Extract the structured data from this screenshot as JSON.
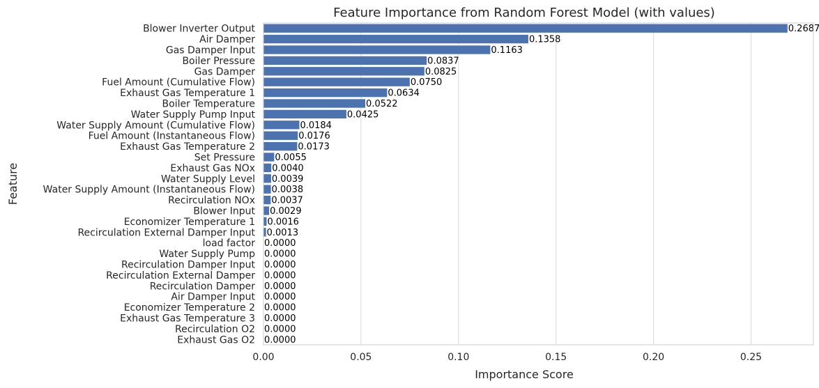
{
  "chart_data": {
    "type": "bar",
    "orientation": "horizontal",
    "title": "Feature Importance from Random Forest Model (with values)",
    "xlabel": "Importance Score",
    "ylabel": "Feature",
    "xlim": [
      0,
      0.282
    ],
    "xticks": [
      0.0,
      0.05,
      0.1,
      0.15,
      0.2,
      0.25
    ],
    "xtick_labels": [
      "0.00",
      "0.05",
      "0.10",
      "0.15",
      "0.20",
      "0.25"
    ],
    "grid": "vertical",
    "bar_color": "#4c72b0",
    "categories": [
      "Blower Inverter Output",
      "Air Damper",
      "Gas Damper Input",
      "Boiler Pressure",
      "Gas Damper",
      "Fuel Amount (Cumulative Flow)",
      "Exhaust Gas Temperature 1",
      "Boiler Temperature",
      "Water Supply Pump Input",
      "Water Supply Amount (Cumulative Flow)",
      "Fuel Amount (Instantaneous Flow)",
      "Exhaust Gas Temperature 2",
      "Set Pressure",
      "Exhaust Gas NOx",
      "Water Supply Level",
      "Water Supply Amount (Instantaneous Flow)",
      "Recirculation NOx",
      "Blower Input",
      "Economizer Temperature 1",
      "Recirculation External Damper Input",
      "load factor",
      "Water Supply Pump",
      "Recirculation Damper Input",
      "Recirculation External Damper",
      "Recirculation Damper",
      "Air Damper Input",
      "Economizer Temperature 2",
      "Exhaust Gas Temperature 3",
      "Recirculation O2",
      "Exhaust Gas O2"
    ],
    "values": [
      0.2687,
      0.1358,
      0.1163,
      0.0837,
      0.0825,
      0.075,
      0.0634,
      0.0522,
      0.0425,
      0.0184,
      0.0176,
      0.0173,
      0.0055,
      0.004,
      0.0039,
      0.0038,
      0.0037,
      0.0029,
      0.0016,
      0.0013,
      0.0,
      0.0,
      0.0,
      0.0,
      0.0,
      0.0,
      0.0,
      0.0,
      0.0,
      0.0
    ],
    "value_labels": [
      "0.2687",
      "0.1358",
      "0.1163",
      "0.0837",
      "0.0825",
      "0.0750",
      "0.0634",
      "0.0522",
      "0.0425",
      "0.0184",
      "0.0176",
      "0.0173",
      "0.0055",
      "0.0040",
      "0.0039",
      "0.0038",
      "0.0037",
      "0.0029",
      "0.0016",
      "0.0013",
      "0.0000",
      "0.0000",
      "0.0000",
      "0.0000",
      "0.0000",
      "0.0000",
      "0.0000",
      "0.0000",
      "0.0000",
      "0.0000"
    ]
  }
}
